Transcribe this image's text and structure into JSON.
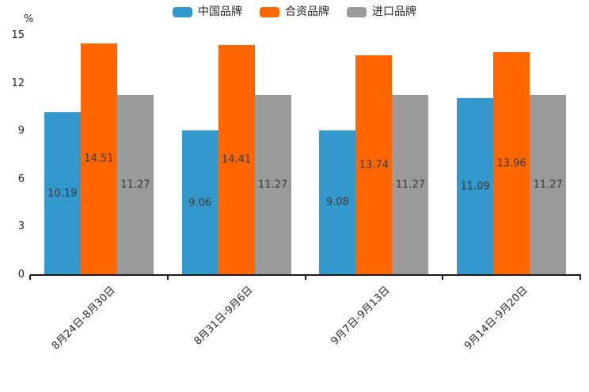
{
  "chart_data": {
    "type": "bar",
    "title": "",
    "unit_label": "%",
    "categories": [
      "8月24日-8月30日",
      "8月31日-9月6日",
      "9月7日-9月13日",
      "9月14日-9月20日"
    ],
    "series": [
      {
        "name": "中国品牌",
        "color": "#3398CB",
        "values": [
          10.19,
          9.06,
          9.08,
          11.09
        ]
      },
      {
        "name": "合资品牌",
        "color": "#FF6600",
        "values": [
          14.51,
          14.41,
          13.74,
          13.96
        ]
      },
      {
        "name": "进口品牌",
        "color": "#9A9A9A",
        "values": [
          11.27,
          11.27,
          11.27,
          11.27
        ]
      }
    ],
    "ylim": [
      0,
      15
    ],
    "yticks": [
      0,
      3,
      6,
      9,
      12,
      15
    ],
    "grid": false,
    "legend_position": "top-center",
    "value_labels": true,
    "value_label_color": "#3a3a3a",
    "axis_color": "#1a1a1a"
  }
}
